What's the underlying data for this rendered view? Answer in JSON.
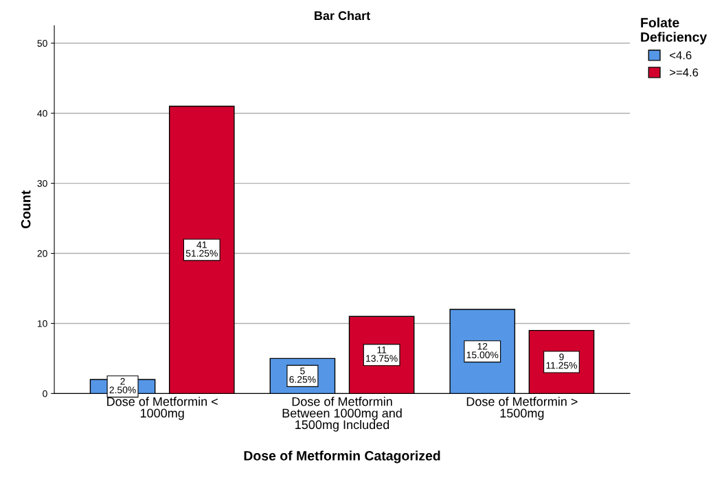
{
  "chart_data": {
    "type": "bar",
    "title": "Bar Chart",
    "xlabel": "Dose of Metformin Catagorized",
    "ylabel": "Count",
    "legend_title": "Folate\nDeficiency",
    "categories": [
      "Dose of Metformin <\n1000mg",
      "Dose of Metformin\nBetween 1000mg and\n1500mg Included",
      "Dose of Metformin >\n1500mg"
    ],
    "series": [
      {
        "name": "<4.6",
        "color": "#5596e6",
        "values": [
          2,
          5,
          12
        ],
        "value_labels": [
          "2\n2.50%",
          "5\n6.25%",
          "12\n15.00%"
        ]
      },
      {
        "name": ">=4.6",
        "color": "#d2002d",
        "values": [
          41,
          11,
          9
        ],
        "value_labels": [
          "41\n51.25%",
          "11\n13.75%",
          "9\n11.25%"
        ]
      }
    ],
    "ylim": [
      0,
      52.5
    ],
    "yticks": [
      0,
      10,
      20,
      30,
      40,
      50
    ],
    "grid": "y",
    "legend": "top right"
  }
}
